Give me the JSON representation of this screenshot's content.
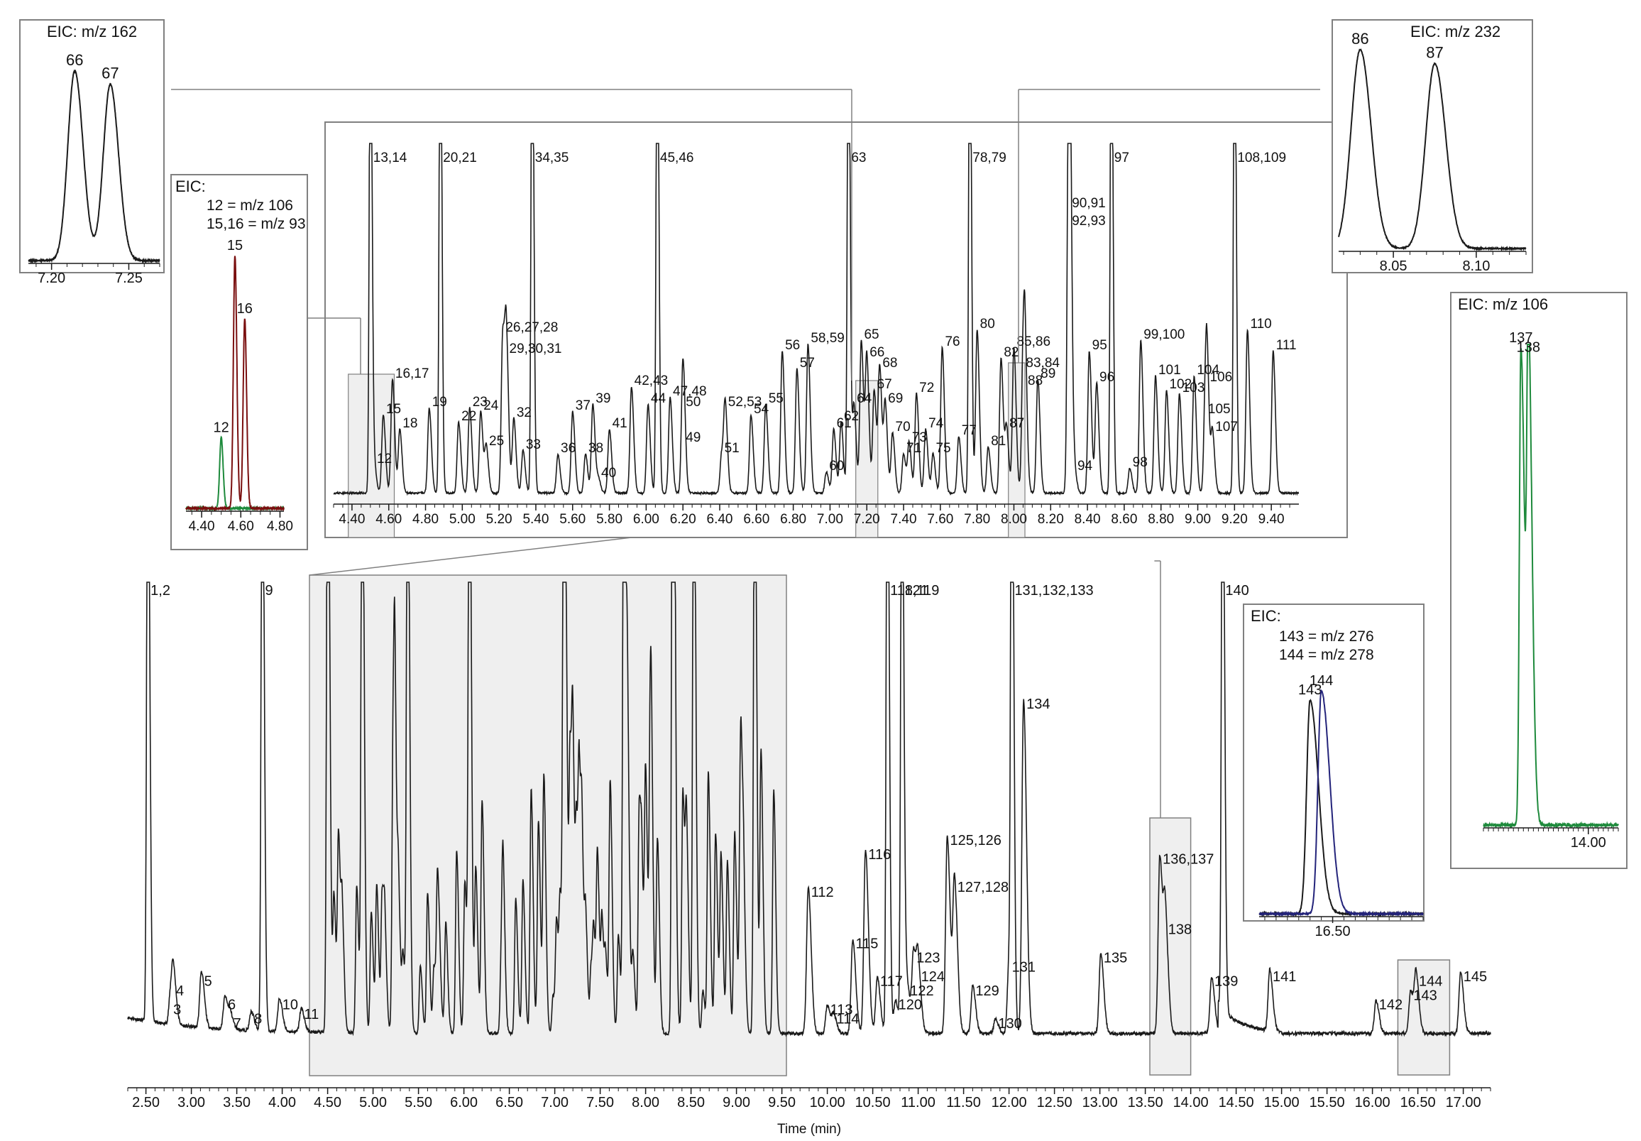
{
  "colors": {
    "black": "#1a1a1a",
    "green": "#1e8a3c",
    "darkred": "#7a0f0f",
    "navy": "#23237a",
    "shade": "#efefef",
    "frame": "#808080"
  },
  "chart_data": [
    {
      "id": "main",
      "type": "line",
      "xlabel": "Time (min)",
      "xlim": [
        2.3,
        17.3
      ],
      "ticks": [
        2.5,
        3.0,
        3.5,
        4.0,
        4.5,
        5.0,
        5.5,
        6.0,
        6.5,
        7.0,
        7.5,
        8.0,
        8.5,
        9.0,
        9.5,
        10.0,
        10.5,
        11.0,
        11.5,
        12.0,
        12.5,
        13.0,
        13.5,
        14.0,
        14.5,
        15.0,
        15.5,
        16.0,
        16.5,
        17.0
      ],
      "tick_labels": [
        "2.50",
        "3.00",
        "3.50",
        "4.00",
        "4.50",
        "5.00",
        "5.50",
        "6.00",
        "6.50",
        "7.00",
        "7.50",
        "8.00",
        "8.50",
        "9.00",
        "9.50",
        "10.00",
        "10.50",
        "11.00",
        "11.50",
        "12.00",
        "12.50",
        "13.00",
        "13.50",
        "14.00",
        "14.50",
        "15.00",
        "15.50",
        "16.00",
        "16.50",
        "17.00"
      ],
      "ylim": [
        0,
        100
      ],
      "peaks": [
        {
          "label": "1,2",
          "x": 2.52,
          "y": 140
        },
        {
          "label": "3",
          "x": 2.77,
          "y": 6
        },
        {
          "label": "4",
          "x": 2.8,
          "y": 10
        },
        {
          "label": "5",
          "x": 3.11,
          "y": 12
        },
        {
          "label": "6",
          "x": 3.37,
          "y": 7
        },
        {
          "label": "7",
          "x": 3.43,
          "y": 3
        },
        {
          "label": "8",
          "x": 3.66,
          "y": 4
        },
        {
          "label": "9",
          "x": 3.78,
          "y": 140
        },
        {
          "label": "10",
          "x": 3.97,
          "y": 7
        },
        {
          "label": "11",
          "x": 4.21,
          "y": 5
        },
        {
          "label": "112",
          "x": 9.79,
          "y": 31
        },
        {
          "label": "113",
          "x": 10.0,
          "y": 6
        },
        {
          "label": "114",
          "x": 10.07,
          "y": 4
        },
        {
          "label": "115",
          "x": 10.28,
          "y": 20
        },
        {
          "label": "116",
          "x": 10.42,
          "y": 39
        },
        {
          "label": "117",
          "x": 10.55,
          "y": 12
        },
        {
          "label": "118,119",
          "x": 10.66,
          "y": 140
        },
        {
          "label": "120",
          "x": 10.75,
          "y": 7
        },
        {
          "label": "121",
          "x": 10.82,
          "y": 140
        },
        {
          "label": "122",
          "x": 10.88,
          "y": 10
        },
        {
          "label": "123",
          "x": 10.95,
          "y": 17
        },
        {
          "label": "124",
          "x": 11.0,
          "y": 13
        },
        {
          "label": "125,126",
          "x": 11.32,
          "y": 42
        },
        {
          "label": "127,128",
          "x": 11.4,
          "y": 32
        },
        {
          "label": "129",
          "x": 11.6,
          "y": 10
        },
        {
          "label": "130",
          "x": 11.85,
          "y": 3
        },
        {
          "label": "131",
          "x": 12.0,
          "y": 15
        },
        {
          "label": "131,132,133",
          "x": 12.03,
          "y": 140
        },
        {
          "label": "134",
          "x": 12.16,
          "y": 71
        },
        {
          "label": "135",
          "x": 13.01,
          "y": 17
        },
        {
          "label": "136,137",
          "x": 13.66,
          "y": 38
        },
        {
          "label": "138",
          "x": 13.72,
          "y": 23
        },
        {
          "label": "139",
          "x": 14.23,
          "y": 12
        },
        {
          "label": "140",
          "x": 14.35,
          "y": 140
        },
        {
          "label": "141",
          "x": 14.87,
          "y": 13
        },
        {
          "label": "142",
          "x": 16.04,
          "y": 7
        },
        {
          "label": "143",
          "x": 16.42,
          "y": 9
        },
        {
          "label": "144",
          "x": 16.48,
          "y": 12
        },
        {
          "label": "145",
          "x": 16.97,
          "y": 13
        }
      ]
    },
    {
      "id": "zoom",
      "type": "line",
      "xlim": [
        4.3,
        9.55
      ],
      "ticks": [
        4.4,
        4.6,
        4.8,
        5.0,
        5.2,
        5.4,
        5.6,
        5.8,
        6.0,
        6.2,
        6.4,
        6.6,
        6.8,
        7.0,
        7.2,
        7.4,
        7.6,
        7.8,
        8.0,
        8.2,
        8.4,
        8.6,
        8.8,
        9.0,
        9.2,
        9.4
      ],
      "tick_labels": [
        "4.40",
        "4.60",
        "4.80",
        "5.00",
        "5.20",
        "5.40",
        "5.60",
        "5.80",
        "6.00",
        "6.20",
        "6.40",
        "6.60",
        "6.80",
        "7.00",
        "7.20",
        "7.40",
        "7.60",
        "7.80",
        "8.00",
        "8.20",
        "8.40",
        "8.60",
        "8.80",
        "9.00",
        "9.20",
        "9.40"
      ],
      "ylim": [
        0,
        100
      ],
      "peaks": [
        {
          "label": "12",
          "x": 4.52,
          "y": 8
        },
        {
          "label": "13,14",
          "x": 4.5,
          "y": 150
        },
        {
          "label": "15",
          "x": 4.57,
          "y": 22
        },
        {
          "label": "16,17",
          "x": 4.62,
          "y": 32
        },
        {
          "label": "18",
          "x": 4.66,
          "y": 18
        },
        {
          "label": "19",
          "x": 4.82,
          "y": 24
        },
        {
          "label": "20,21",
          "x": 4.88,
          "y": 150
        },
        {
          "label": "22",
          "x": 4.98,
          "y": 20
        },
        {
          "label": "23",
          "x": 5.04,
          "y": 24
        },
        {
          "label": "24",
          "x": 5.1,
          "y": 23
        },
        {
          "label": "25",
          "x": 5.13,
          "y": 13
        },
        {
          "label": "26,27,28",
          "x": 5.22,
          "y": 45
        },
        {
          "label": "29,30,31",
          "x": 5.24,
          "y": 39
        },
        {
          "label": "32",
          "x": 5.28,
          "y": 21
        },
        {
          "label": "33",
          "x": 5.33,
          "y": 12
        },
        {
          "label": "34,35",
          "x": 5.38,
          "y": 150
        },
        {
          "label": "36",
          "x": 5.52,
          "y": 11
        },
        {
          "label": "37",
          "x": 5.6,
          "y": 23
        },
        {
          "label": "38",
          "x": 5.67,
          "y": 11
        },
        {
          "label": "39",
          "x": 5.71,
          "y": 25
        },
        {
          "label": "40",
          "x": 5.74,
          "y": 4
        },
        {
          "label": "41",
          "x": 5.8,
          "y": 18
        },
        {
          "label": "42,43",
          "x": 5.92,
          "y": 30
        },
        {
          "label": "44",
          "x": 6.01,
          "y": 25
        },
        {
          "label": "45,46",
          "x": 6.06,
          "y": 150
        },
        {
          "label": "47,48",
          "x": 6.13,
          "y": 27
        },
        {
          "label": "49",
          "x": 6.2,
          "y": 14
        },
        {
          "label": "50",
          "x": 6.2,
          "y": 24
        },
        {
          "label": "51",
          "x": 6.41,
          "y": 11
        },
        {
          "label": "52,53",
          "x": 6.43,
          "y": 24
        },
        {
          "label": "54",
          "x": 6.57,
          "y": 22
        },
        {
          "label": "55",
          "x": 6.65,
          "y": 25
        },
        {
          "label": "56",
          "x": 6.74,
          "y": 40
        },
        {
          "label": "57",
          "x": 6.82,
          "y": 35
        },
        {
          "label": "58,59",
          "x": 6.88,
          "y": 42
        },
        {
          "label": "60",
          "x": 6.98,
          "y": 6
        },
        {
          "label": "61",
          "x": 7.02,
          "y": 18
        },
        {
          "label": "62",
          "x": 7.06,
          "y": 20
        },
        {
          "label": "63",
          "x": 7.1,
          "y": 150
        },
        {
          "label": "64",
          "x": 7.13,
          "y": 25
        },
        {
          "label": "65",
          "x": 7.17,
          "y": 43
        },
        {
          "label": "66",
          "x": 7.2,
          "y": 38
        },
        {
          "label": "67",
          "x": 7.24,
          "y": 29
        },
        {
          "label": "68",
          "x": 7.27,
          "y": 35
        },
        {
          "label": "69",
          "x": 7.3,
          "y": 25
        },
        {
          "label": "70",
          "x": 7.34,
          "y": 17
        },
        {
          "label": "71",
          "x": 7.4,
          "y": 11
        },
        {
          "label": "72",
          "x": 7.47,
          "y": 28
        },
        {
          "label": "73",
          "x": 7.43,
          "y": 14
        },
        {
          "label": "74",
          "x": 7.52,
          "y": 18
        },
        {
          "label": "75",
          "x": 7.56,
          "y": 11
        },
        {
          "label": "76",
          "x": 7.61,
          "y": 41
        },
        {
          "label": "77",
          "x": 7.7,
          "y": 16
        },
        {
          "label": "78,79",
          "x": 7.76,
          "y": 150
        },
        {
          "label": "80",
          "x": 7.8,
          "y": 46
        },
        {
          "label": "81",
          "x": 7.86,
          "y": 13
        },
        {
          "label": "82",
          "x": 7.93,
          "y": 38
        },
        {
          "label": "83,84",
          "x": 8.05,
          "y": 35
        },
        {
          "label": "85,86",
          "x": 8.0,
          "y": 41
        },
        {
          "label": "87",
          "x": 7.96,
          "y": 18
        },
        {
          "label": "88",
          "x": 8.06,
          "y": 30
        },
        {
          "label": "89",
          "x": 8.13,
          "y": 32
        },
        {
          "label": "90,91",
          "x": 8.3,
          "y": 80
        },
        {
          "label": "92,93",
          "x": 8.3,
          "y": 75
        },
        {
          "label": "94",
          "x": 8.33,
          "y": 6
        },
        {
          "label": "95",
          "x": 8.41,
          "y": 40
        },
        {
          "label": "96",
          "x": 8.45,
          "y": 31
        },
        {
          "label": "97",
          "x": 8.53,
          "y": 150
        },
        {
          "label": "98",
          "x": 8.63,
          "y": 7
        },
        {
          "label": "99,100",
          "x": 8.69,
          "y": 43
        },
        {
          "label": "101",
          "x": 8.77,
          "y": 33
        },
        {
          "label": "102",
          "x": 8.83,
          "y": 29
        },
        {
          "label": "103",
          "x": 8.9,
          "y": 28
        },
        {
          "label": "104",
          "x": 8.98,
          "y": 33
        },
        {
          "label": "105",
          "x": 9.04,
          "y": 22
        },
        {
          "label": "106",
          "x": 9.05,
          "y": 31
        },
        {
          "label": "107",
          "x": 9.08,
          "y": 17
        },
        {
          "label": "108,109",
          "x": 9.2,
          "y": 150
        },
        {
          "label": "110",
          "x": 9.27,
          "y": 46
        },
        {
          "label": "111",
          "x": 9.41,
          "y": 40
        }
      ]
    },
    {
      "id": "eic162",
      "type": "line",
      "title": "EIC: m/z 162",
      "xlim": [
        7.185,
        7.27
      ],
      "ticks": [
        7.2,
        7.25
      ],
      "tick_labels": [
        "7.20",
        "7.25"
      ],
      "ylim": [
        0,
        100
      ],
      "series": [
        {
          "peaks": [
            {
              "label": "66",
              "x": 7.215,
              "y": 100
            },
            {
              "label": "67",
              "x": 7.238,
              "y": 93
            }
          ]
        }
      ]
    },
    {
      "id": "eic232",
      "type": "line",
      "title": "EIC: m/z 232",
      "xlim": [
        8.017,
        8.13
      ],
      "ticks": [
        8.05,
        8.1
      ],
      "tick_labels": [
        "8.05",
        "8.10"
      ],
      "ylim": [
        0,
        100
      ],
      "series": [
        {
          "peaks": [
            {
              "label": "86",
              "x": 8.03,
              "y": 100
            },
            {
              "label": "87",
              "x": 8.075,
              "y": 93
            }
          ]
        }
      ]
    },
    {
      "id": "eic_12_15_16",
      "type": "line",
      "title": "EIC:",
      "xlim": [
        4.32,
        4.82
      ],
      "ticks": [
        4.4,
        4.6,
        4.8
      ],
      "tick_labels": [
        "4.40",
        "4.60",
        "4.80"
      ],
      "ylim": [
        0,
        100
      ],
      "series": [
        {
          "name": "12 = m/z 106",
          "color": "#1e8a3c",
          "peaks": [
            {
              "label": "12",
              "x": 4.5,
              "y": 28
            }
          ]
        },
        {
          "name": "15,16 = m/z 93",
          "color": "#7a0f0f",
          "peaks": [
            {
              "label": "15",
              "x": 4.57,
              "y": 100
            },
            {
              "label": "16",
              "x": 4.62,
              "y": 75
            }
          ]
        }
      ]
    },
    {
      "id": "eic106",
      "type": "line",
      "title": "EIC: m/z 106",
      "xlim": [
        13.58,
        14.12
      ],
      "ticks": [
        14.0
      ],
      "tick_labels": [
        "14.00"
      ],
      "ylim": [
        0,
        100
      ],
      "series": [
        {
          "color": "#1e8a3c",
          "peaks": [
            {
              "label": "137",
              "x": 13.73,
              "y": 100
            },
            {
              "label": "138",
              "x": 13.76,
              "y": 98
            }
          ]
        }
      ]
    },
    {
      "id": "eic276_278",
      "type": "line",
      "title": "EIC:",
      "xlim": [
        16.37,
        16.66
      ],
      "ticks": [
        16.5
      ],
      "tick_labels": [
        "16.50"
      ],
      "ylim": [
        0,
        100
      ],
      "series": [
        {
          "name": "143 = m/z 276",
          "color": "#1a1a1a",
          "peaks": [
            {
              "label": "143",
              "x": 16.46,
              "y": 92
            }
          ]
        },
        {
          "name": "144 = m/z 278",
          "color": "#23237a",
          "peaks": [
            {
              "label": "144",
              "x": 16.48,
              "y": 96
            }
          ]
        }
      ]
    }
  ]
}
